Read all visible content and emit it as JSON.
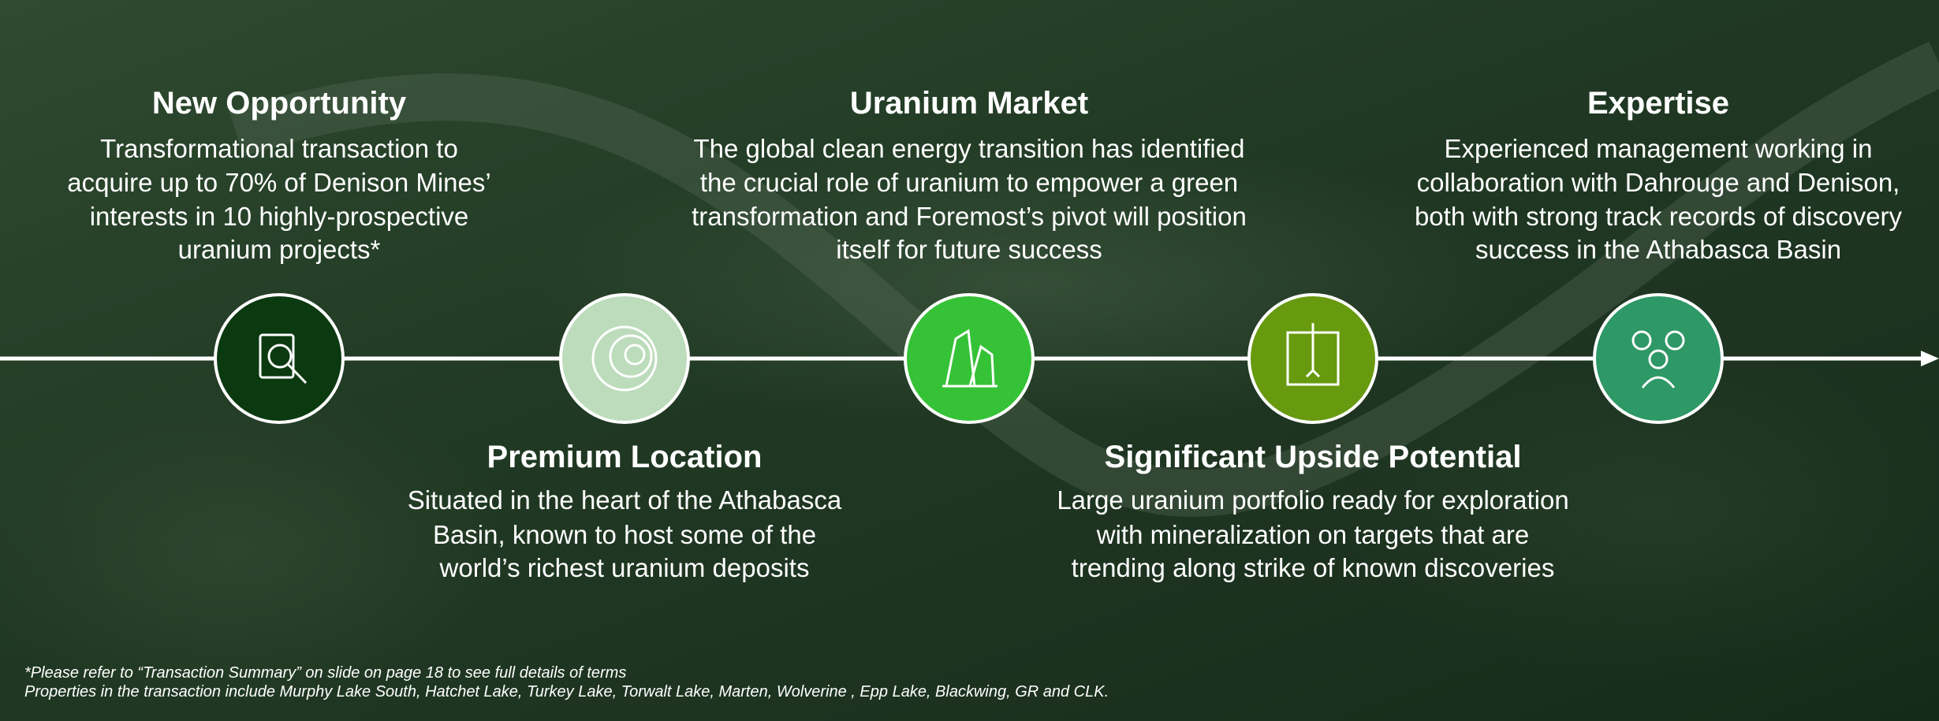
{
  "items": [
    {
      "title": "New Opportunity",
      "lines": [
        "Transformational transaction to",
        "acquire up to 70% of Denison Mines’",
        "interests in 10 highly-prospective",
        "uranium projects*"
      ]
    },
    {
      "title": "Premium Location",
      "lines": [
        "Situated in the heart of the Athabasca",
        "Basin, known to host some of the",
        "world’s richest uranium deposits"
      ]
    },
    {
      "title": "Uranium Market",
      "lines": [
        "The global clean energy transition has identified",
        "the crucial role of uranium to empower a green",
        "transformation and Foremost’s pivot will position",
        "itself for future success"
      ]
    },
    {
      "title": "Significant Upside Potential",
      "lines": [
        "Large uranium portfolio ready for exploration",
        "with mineralization on targets that are",
        "trending along strike of known discoveries"
      ]
    },
    {
      "title": "Expertise",
      "lines": [
        "Experienced management working in",
        "collaboration with Dahrouge and Denison,",
        "both with strong track records of discovery",
        "success in the Athabasca Basin"
      ]
    }
  ],
  "footnotes": [
    "*Please refer to “Transaction Summary” on slide on page 18  to see full details of terms",
    " Properties in the transaction include Murphy Lake South, Hatchet Lake, Turkey Lake, Torwalt Lake, Marten, Wolverine , Epp Lake, Blackwing, GR and CLK."
  ]
}
